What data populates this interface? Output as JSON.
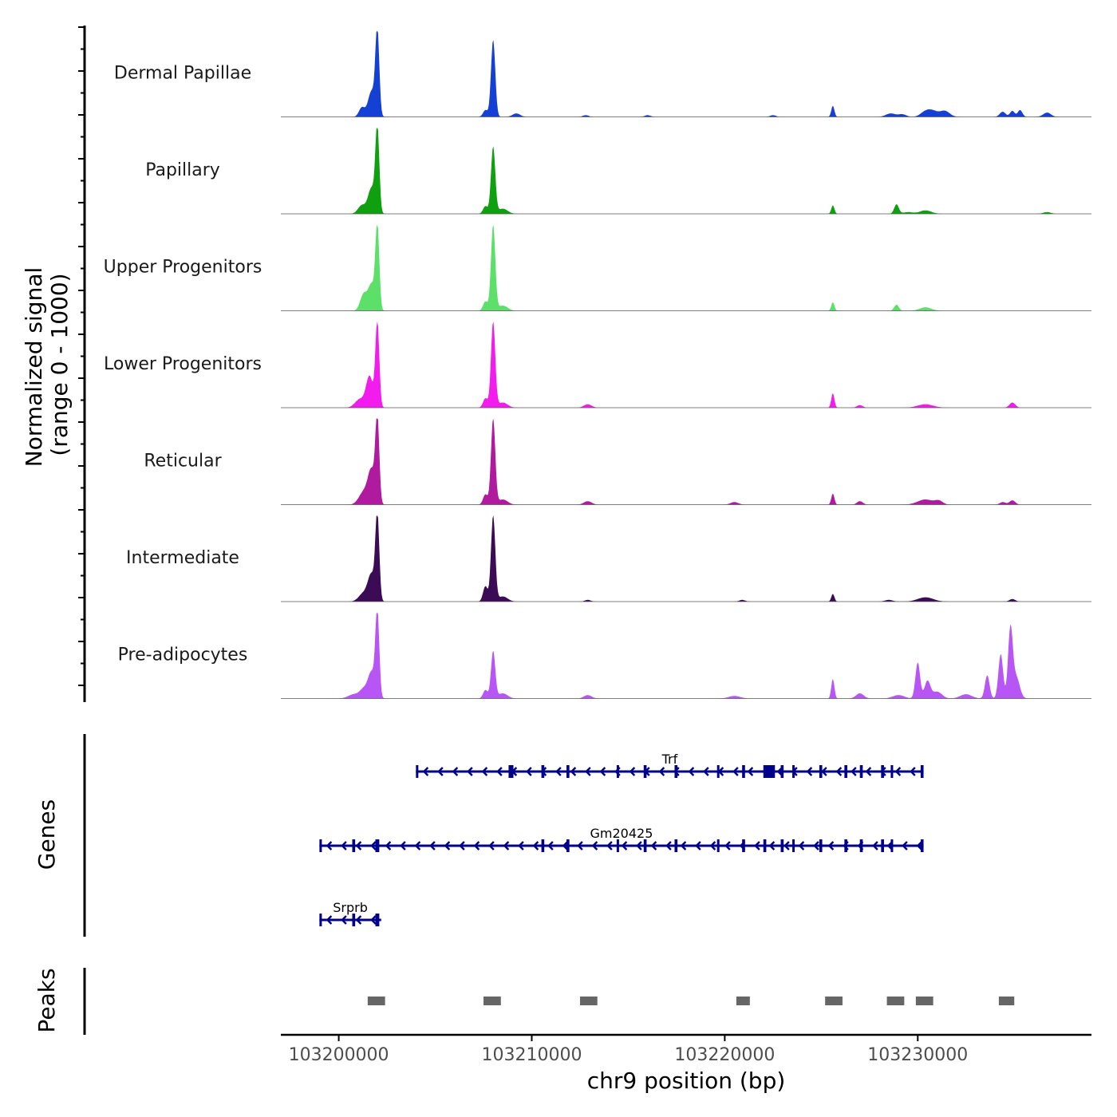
{
  "chart_data": {
    "type": "area",
    "title": "",
    "chromosome": "chr9",
    "xlabel": "chr9 position (bp)",
    "ylabel_line1": "Normalized signal",
    "ylabel_line2": "(range 0 - 1000)",
    "xlim": [
      103197000,
      103239000
    ],
    "ylim": [
      0,
      1000
    ],
    "x_ticks": [
      103200000,
      103210000,
      103220000,
      103230000
    ],
    "x_tick_labels": [
      "103200000",
      "103210000",
      "103220000",
      "103230000"
    ],
    "tracks": [
      {
        "name": "Dermal Papillae",
        "color": "#1540d4",
        "peaks": [
          [
            103201200,
            150,
            110
          ],
          [
            103201700,
            180,
            300
          ],
          [
            103202000,
            100,
            1000
          ],
          [
            103207600,
            120,
            80
          ],
          [
            103208000,
            110,
            900
          ],
          [
            103209200,
            200,
            40
          ],
          [
            103212800,
            150,
            20
          ],
          [
            103216000,
            150,
            20
          ],
          [
            103222500,
            150,
            20
          ],
          [
            103225600,
            80,
            130
          ],
          [
            103228600,
            250,
            40
          ],
          [
            103229200,
            200,
            30
          ],
          [
            103230400,
            250,
            60
          ],
          [
            103230800,
            250,
            60
          ],
          [
            103231400,
            250,
            70
          ],
          [
            103234400,
            150,
            60
          ],
          [
            103234900,
            120,
            70
          ],
          [
            103235300,
            120,
            80
          ],
          [
            103236700,
            200,
            50
          ]
        ]
      },
      {
        "name": "Papillary",
        "color": "#0fa00f",
        "peaks": [
          [
            103201200,
            200,
            100
          ],
          [
            103201700,
            180,
            300
          ],
          [
            103202000,
            100,
            1000
          ],
          [
            103207600,
            120,
            90
          ],
          [
            103208000,
            110,
            780
          ],
          [
            103208500,
            250,
            60
          ],
          [
            103225600,
            80,
            100
          ],
          [
            103228900,
            120,
            110
          ],
          [
            103229500,
            250,
            20
          ],
          [
            103230400,
            300,
            40
          ],
          [
            103236700,
            200,
            20
          ]
        ]
      },
      {
        "name": "Upper Progenitors",
        "color": "#5ce06a",
        "peaks": [
          [
            103201300,
            180,
            200
          ],
          [
            103201700,
            160,
            300
          ],
          [
            103202000,
            100,
            1000
          ],
          [
            103207600,
            120,
            110
          ],
          [
            103208000,
            110,
            1000
          ],
          [
            103208500,
            250,
            60
          ],
          [
            103225600,
            80,
            100
          ],
          [
            103228900,
            120,
            70
          ],
          [
            103230400,
            300,
            40
          ]
        ]
      },
      {
        "name": "Lower Progenitors",
        "color": "#f21cec",
        "peaks": [
          [
            103201100,
            250,
            100
          ],
          [
            103201600,
            180,
            360
          ],
          [
            103202000,
            100,
            1000
          ],
          [
            103207600,
            120,
            110
          ],
          [
            103208000,
            110,
            1000
          ],
          [
            103208500,
            250,
            60
          ],
          [
            103212900,
            200,
            40
          ],
          [
            103225600,
            80,
            170
          ],
          [
            103227000,
            150,
            30
          ],
          [
            103230400,
            400,
            40
          ],
          [
            103234900,
            150,
            60
          ]
        ]
      },
      {
        "name": "Reticular",
        "color": "#b01a9e",
        "peaks": [
          [
            103201300,
            250,
            150
          ],
          [
            103201700,
            180,
            380
          ],
          [
            103202000,
            100,
            1000
          ],
          [
            103207600,
            120,
            120
          ],
          [
            103208000,
            110,
            1000
          ],
          [
            103208500,
            250,
            60
          ],
          [
            103212900,
            200,
            40
          ],
          [
            103220500,
            200,
            30
          ],
          [
            103225600,
            80,
            130
          ],
          [
            103227000,
            150,
            40
          ],
          [
            103230400,
            400,
            60
          ],
          [
            103231100,
            200,
            40
          ],
          [
            103234400,
            150,
            30
          ],
          [
            103234900,
            150,
            50
          ]
        ]
      },
      {
        "name": "Intermediate",
        "color": "#3b0b55",
        "peaks": [
          [
            103201300,
            250,
            100
          ],
          [
            103201700,
            180,
            300
          ],
          [
            103202000,
            100,
            1000
          ],
          [
            103207600,
            120,
            180
          ],
          [
            103208000,
            110,
            1000
          ],
          [
            103208500,
            250,
            60
          ],
          [
            103212900,
            150,
            20
          ],
          [
            103220900,
            150,
            20
          ],
          [
            103225600,
            80,
            90
          ],
          [
            103228500,
            200,
            20
          ],
          [
            103230400,
            400,
            50
          ],
          [
            103234900,
            150,
            30
          ]
        ]
      },
      {
        "name": "Pre-adipocytes",
        "color": "#b756f5",
        "peaks": [
          [
            103200800,
            300,
            50
          ],
          [
            103201300,
            200,
            100
          ],
          [
            103201700,
            180,
            300
          ],
          [
            103202000,
            100,
            1000
          ],
          [
            103207600,
            120,
            100
          ],
          [
            103208000,
            110,
            550
          ],
          [
            103208500,
            250,
            60
          ],
          [
            103212900,
            200,
            40
          ],
          [
            103220500,
            300,
            30
          ],
          [
            103225600,
            80,
            230
          ],
          [
            103227000,
            200,
            60
          ],
          [
            103229000,
            300,
            40
          ],
          [
            103230000,
            120,
            420
          ],
          [
            103230500,
            150,
            200
          ],
          [
            103231000,
            250,
            80
          ],
          [
            103232500,
            300,
            50
          ],
          [
            103233600,
            120,
            270
          ],
          [
            103234300,
            120,
            520
          ],
          [
            103234800,
            120,
            800
          ],
          [
            103235100,
            180,
            250
          ]
        ]
      }
    ],
    "genes": [
      {
        "name": "Trf",
        "start": 103204000,
        "end": 103230300,
        "strand": "-",
        "exons": [
          [
            103204000,
            103204120
          ],
          [
            103208800,
            103209050
          ],
          [
            103210500,
            103210650
          ],
          [
            103211800,
            103211950
          ],
          [
            103214400,
            103214480
          ],
          [
            103215800,
            103215950
          ],
          [
            103217400,
            103217550
          ],
          [
            103219600,
            103219700
          ],
          [
            103220900,
            103221050
          ],
          [
            103222000,
            103222600
          ],
          [
            103222900,
            103223050
          ],
          [
            103223500,
            103223550
          ],
          [
            103224900,
            103225050
          ],
          [
            103226200,
            103226350
          ],
          [
            103227000,
            103227150
          ],
          [
            103228100,
            103228250
          ],
          [
            103228600,
            103228700
          ],
          [
            103230150,
            103230300
          ]
        ]
      },
      {
        "name": "Gm20425",
        "start": 103199000,
        "end": 103230300,
        "strand": "-",
        "exons": [
          [
            103199000,
            103199080
          ],
          [
            103200700,
            103200850
          ],
          [
            103201900,
            103202100
          ],
          [
            103210500,
            103210650
          ],
          [
            103211800,
            103211950
          ],
          [
            103214400,
            103214480
          ],
          [
            103215800,
            103215950
          ],
          [
            103217400,
            103217550
          ],
          [
            103219600,
            103219700
          ],
          [
            103220900,
            103221050
          ],
          [
            103222000,
            103222150
          ],
          [
            103222900,
            103223050
          ],
          [
            103223500,
            103223550
          ],
          [
            103224900,
            103225050
          ],
          [
            103226200,
            103226350
          ],
          [
            103227000,
            103227150
          ],
          [
            103228100,
            103228250
          ],
          [
            103228600,
            103228700
          ],
          [
            103230150,
            103230300
          ]
        ]
      },
      {
        "name": "Srprb",
        "start": 103199000,
        "end": 103202200,
        "strand": "-",
        "exons": [
          [
            103199000,
            103199080
          ],
          [
            103200700,
            103200850
          ],
          [
            103201900,
            103202100
          ]
        ]
      }
    ],
    "peaks": [
      [
        103201500,
        103202400
      ],
      [
        103207500,
        103208400
      ],
      [
        103212500,
        103213400
      ],
      [
        103220600,
        103221300
      ],
      [
        103225200,
        103226100
      ],
      [
        103228400,
        103229300
      ],
      [
        103229900,
        103230800
      ],
      [
        103234200,
        103235000
      ]
    ],
    "panel_titles": {
      "genes": "Genes",
      "peaks": "Peaks"
    }
  }
}
